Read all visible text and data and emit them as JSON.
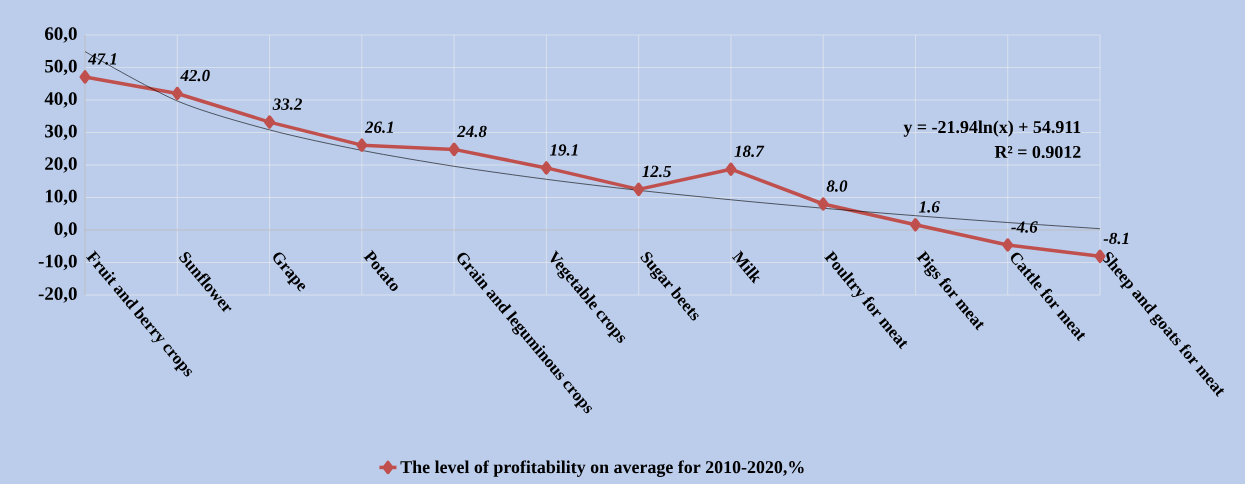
{
  "chart_data": {
    "type": "line",
    "categories": [
      "Fruit and berry crops",
      "Sunflower",
      "Grape",
      "Potato",
      "Grain and leguminous crops",
      "Vegetable crops",
      "Sugar beets",
      "Milk",
      "Poultry for meat",
      "Pigs for meat",
      "Cattle for meat",
      "Sheep and goats for meat"
    ],
    "series": [
      {
        "name": "The level of profitability on average for 2010-2020,%",
        "color": "#c0504d",
        "marker": "diamond",
        "values": [
          47.1,
          42.0,
          33.2,
          26.1,
          24.8,
          19.1,
          12.5,
          18.7,
          8.0,
          1.6,
          -4.6,
          -8.1
        ],
        "value_labels": [
          "47.1",
          "42.0",
          "33.2",
          "26.1",
          "24.8",
          "19.1",
          "12.5",
          "18.7",
          "8.0",
          "1.6",
          "-4.6",
          "-8.1"
        ]
      },
      {
        "type": "line",
        "color": "#000000",
        "marker": "none",
        "values": [
          54.9,
          39.7,
          30.8,
          24.5,
          19.6,
          15.6,
          12.2,
          9.3,
          6.7,
          4.4,
          2.3,
          0.4
        ]
      }
    ],
    "ylim": [
      -20,
      60
    ],
    "yticks": [
      {
        "value": -20,
        "label": "-20,0"
      },
      {
        "value": -10,
        "label": "-10,0"
      },
      {
        "value": 0,
        "label": "0,0"
      },
      {
        "value": 10,
        "label": "10,0"
      },
      {
        "value": 20,
        "label": "20,0"
      },
      {
        "value": 30,
        "label": "30,0"
      },
      {
        "value": 40,
        "label": "40,0"
      },
      {
        "value": 50,
        "label": "50,0"
      },
      {
        "value": 60,
        "label": "60,0"
      }
    ],
    "annotations": [
      "y = -21.94ln(x) + 54.911",
      "R² = 0.9012"
    ],
    "grid": true,
    "legend": "bottom"
  }
}
